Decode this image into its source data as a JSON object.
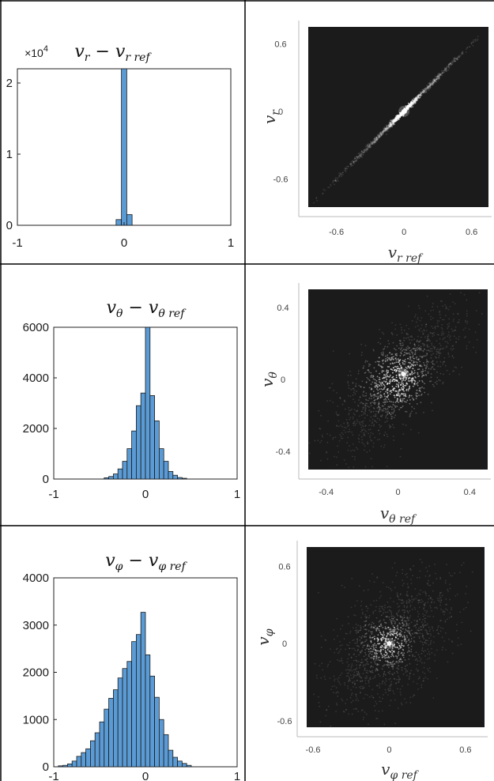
{
  "colors": {
    "bar_fill": "#5b9bd5",
    "bar_edge": "#1a1a1a",
    "density_bg": "#1b1b1b",
    "density_point": "#ffffff",
    "grid_line": "#000000"
  },
  "chart_data": [
    {
      "type": "bar",
      "panel": "row1-histogram",
      "title": "v_r − v_r ref",
      "title_parts": {
        "main": "v",
        "sub": "r",
        "minus": " − ",
        "ref_main": "v",
        "ref_sub": "r ref"
      },
      "xlim": [
        -1,
        1
      ],
      "ylim": [
        0,
        22000
      ],
      "exponent_label": "×10",
      "exponent_power": "4",
      "xticks": [
        -1,
        0,
        1
      ],
      "xtick_labels": [
        "-1",
        "0",
        "1"
      ],
      "yticks": [
        0,
        10000,
        20000
      ],
      "ytick_labels": [
        "0",
        "1",
        "2"
      ],
      "bin_start": -0.075,
      "bin_width": 0.05,
      "values": [
        800,
        22000,
        1500
      ]
    },
    {
      "type": "scatter",
      "panel": "row1-density",
      "style": "density",
      "xlabel_parts": {
        "main": "v",
        "sub": "r ref"
      },
      "ylabel_parts": {
        "main": "v",
        "sub": "r"
      },
      "xlim": [
        -0.85,
        0.75
      ],
      "ylim": [
        -0.85,
        0.75
      ],
      "xticks": [
        -0.6,
        0,
        0.6
      ],
      "xtick_labels": [
        "-0.6",
        "0",
        "0.6"
      ],
      "yticks": [
        -0.6,
        0,
        0.6
      ],
      "ytick_labels": [
        "-0.6",
        "0",
        "0.6"
      ],
      "relation": {
        "slope": 1.0,
        "intercept": 0.0,
        "spread": 0.012,
        "x_range": [
          -0.8,
          0.7
        ]
      },
      "hotspot": {
        "x": 0.0,
        "y": 0.0
      }
    },
    {
      "type": "bar",
      "panel": "row2-histogram",
      "title": "v_θ − v_θ ref",
      "title_parts": {
        "main": "v",
        "sub": "θ",
        "minus": " − ",
        "ref_main": "v",
        "ref_sub": "θ ref"
      },
      "xlim": [
        -1,
        1
      ],
      "ylim": [
        0,
        6000
      ],
      "xticks": [
        -1,
        0,
        1
      ],
      "xtick_labels": [
        "-1",
        "0",
        "1"
      ],
      "yticks": [
        0,
        2000,
        4000,
        6000
      ],
      "ytick_labels": [
        "0",
        "2000",
        "4000",
        "6000"
      ],
      "bin_start": -0.45,
      "bin_width": 0.05,
      "values": [
        50,
        100,
        200,
        400,
        700,
        1200,
        1900,
        2900,
        3400,
        6000,
        3300,
        2300,
        1200,
        700,
        300,
        150,
        60,
        30
      ]
    },
    {
      "type": "scatter",
      "panel": "row2-density",
      "style": "density",
      "xlabel_parts": {
        "main": "v",
        "sub": "θ ref"
      },
      "ylabel_parts": {
        "main": "v",
        "sub": "θ"
      },
      "xlim": [
        -0.5,
        0.5
      ],
      "ylim": [
        -0.5,
        0.5
      ],
      "xticks": [
        -0.4,
        0,
        0.4
      ],
      "xtick_labels": [
        "-0.4",
        "0",
        "0.4"
      ],
      "yticks": [
        -0.4,
        0,
        0.4
      ],
      "ytick_labels": [
        "-0.4",
        "0",
        "0.4"
      ],
      "relation": {
        "slope": 0.85,
        "intercept": 0.0,
        "spread": 0.13,
        "x_range": [
          -0.5,
          0.5
        ]
      },
      "hotspot": {
        "x": 0.03,
        "y": 0.03
      }
    },
    {
      "type": "bar",
      "panel": "row3-histogram",
      "title": "v_φ − v_φ ref",
      "title_parts": {
        "main": "v",
        "sub": "φ",
        "minus": " − ",
        "ref_main": "v",
        "ref_sub": "φ ref"
      },
      "xlim": [
        -1,
        1
      ],
      "ylim": [
        0,
        4000
      ],
      "xticks": [
        -1,
        0,
        1
      ],
      "xtick_labels": [
        "-1",
        "0",
        "1"
      ],
      "yticks": [
        0,
        1000,
        2000,
        3000,
        4000
      ],
      "ytick_labels": [
        "0",
        "1000",
        "2000",
        "3000",
        "4000"
      ],
      "bin_start": -0.95,
      "bin_width": 0.05,
      "values": [
        20,
        30,
        60,
        120,
        220,
        300,
        380,
        550,
        720,
        950,
        1220,
        1450,
        1630,
        1880,
        2080,
        2230,
        2650,
        2800,
        3270,
        2370,
        1920,
        1470,
        1000,
        680,
        350,
        200,
        120,
        70,
        30
      ]
    },
    {
      "type": "scatter",
      "panel": "row3-density",
      "style": "density",
      "xlabel_parts": {
        "main": "v",
        "sub": "φ ref"
      },
      "ylabel_parts": {
        "main": "v",
        "sub": "φ"
      },
      "xlim": [
        -0.65,
        0.75
      ],
      "ylim": [
        -0.65,
        0.75
      ],
      "xticks": [
        -0.6,
        0,
        0.6
      ],
      "xtick_labels": [
        "-0.6",
        "0",
        "0.6"
      ],
      "yticks": [
        -0.6,
        0,
        0.6
      ],
      "ytick_labels": [
        "-0.6",
        "0",
        "0.6"
      ],
      "relation": {
        "slope": 0.55,
        "intercept": 0.0,
        "spread": 0.22,
        "x_range": [
          -0.6,
          0.7
        ]
      },
      "hotspot": {
        "x": 0.0,
        "y": 0.0
      }
    }
  ]
}
